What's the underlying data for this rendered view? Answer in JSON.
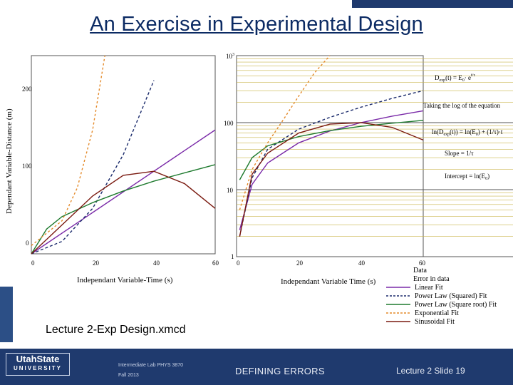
{
  "slide": {
    "title": "An Exercise in Experimental Design",
    "caption": "Lecture 2-Exp Design.xmcd"
  },
  "left_plot": {
    "ylabel": "Dependant Variable-Distance (m)",
    "xlabel": "Independant Variable-Time (s)",
    "xticks": [
      "0",
      "20",
      "40",
      "60"
    ],
    "yticks": [
      "0",
      "100",
      "200"
    ]
  },
  "right_plot": {
    "xlabel": "Independant Variable Time (s)",
    "xticks": [
      "0",
      "20",
      "40",
      "60"
    ],
    "yticks": [
      "1",
      "10",
      "100"
    ],
    "ytop_label": "10",
    "ytop_exp": "3"
  },
  "equations": {
    "eq1_lhs": "D",
    "eq1_sub": "exp",
    "eq1_mid": "(t) = E",
    "eq1_sub2": "0",
    "eq1_rest": "· e",
    "eq1_exp": "t/τ",
    "log_text": "Taking the log of the equation",
    "eq2": "ln(D",
    "eq2_sub": "exp",
    "eq2_rest": "(t)) = ln(E",
    "eq2_sub2": "0",
    "eq2_end": ") + (1/τ)·t",
    "slope": "Slope = 1/τ",
    "intercept": "Intercept = ln(E",
    "intercept_sub": "0",
    "intercept_end": ")"
  },
  "legend": {
    "items": [
      {
        "label": "Data",
        "color": "#000000",
        "style": "dots"
      },
      {
        "label": "Error in data",
        "color": "#000000",
        "style": "none"
      },
      {
        "label": "Linear Fit",
        "color": "#7a2aa8",
        "style": "solid"
      },
      {
        "label": "Power Law (Squared) Fit",
        "color": "#1a2a6b",
        "style": "dash"
      },
      {
        "label": "Power Law (Square root) Fit",
        "color": "#1e7a2e",
        "style": "solid"
      },
      {
        "label": "Exponential Fit",
        "color": "#e48a2a",
        "style": "dash"
      },
      {
        "label": "Sinusoidal Fit",
        "color": "#7a1a10",
        "style": "solid"
      }
    ]
  },
  "footer": {
    "logo_top": "UtahState",
    "logo_bottom": "UNIVERSITY",
    "course": "Intermediate Lab PHYS 3870",
    "term": "Fall 2013",
    "center": "DEFINING ERRORS",
    "slide_number": "Lecture  2   Slide  19"
  },
  "colors": {
    "linear": "#7a2aa8",
    "power_squared": "#1a2a6b",
    "power_sqrt": "#1e7a2e",
    "exponential": "#e48a2a",
    "sinusoidal": "#7a1a10",
    "gridline": "#c9b44a",
    "footer_bg": "#1f3a6e"
  },
  "chart_data": [
    {
      "type": "line",
      "title": "",
      "xlabel": "Independant Variable-Time (s)",
      "ylabel": "Dependant Variable-Distance (m)",
      "xlim": [
        0,
        60
      ],
      "ylim": [
        0,
        240
      ],
      "series": [
        {
          "name": "Linear Fit",
          "x": [
            0,
            60
          ],
          "y": [
            0,
            150
          ]
        },
        {
          "name": "Power Law (Squared) Fit",
          "x": [
            0,
            10,
            20,
            30,
            40
          ],
          "y": [
            0,
            15,
            55,
            120,
            210
          ]
        },
        {
          "name": "Power Law (Square root) Fit",
          "x": [
            0,
            5,
            10,
            20,
            30,
            40,
            50,
            60
          ],
          "y": [
            0,
            30,
            45,
            62,
            76,
            88,
            98,
            108
          ]
        },
        {
          "name": "Exponential Fit",
          "x": [
            0,
            10,
            15,
            20,
            24
          ],
          "y": [
            10,
            40,
            80,
            150,
            240
          ]
        },
        {
          "name": "Sinusoidal Fit",
          "x": [
            0,
            10,
            20,
            30,
            40,
            50,
            60
          ],
          "y": [
            0,
            35,
            70,
            95,
            100,
            85,
            55
          ]
        }
      ]
    },
    {
      "type": "line",
      "title": "",
      "xlabel": "Independant Variable Time (s)",
      "ylabel": "",
      "xlim": [
        0,
        60
      ],
      "ylim": [
        1,
        1000
      ],
      "yscale": "log",
      "series": [
        {
          "name": "Linear Fit",
          "x": [
            1,
            5,
            10,
            20,
            30,
            40,
            50,
            60
          ],
          "y": [
            2.5,
            12,
            25,
            50,
            75,
            100,
            125,
            150
          ]
        },
        {
          "name": "Power Law (Squared) Fit",
          "x": [
            1,
            5,
            10,
            20,
            30,
            40,
            50,
            60
          ],
          "y": [
            2,
            15,
            40,
            80,
            120,
            170,
            230,
            300
          ]
        },
        {
          "name": "Power Law (Square root) Fit",
          "x": [
            1,
            5,
            10,
            20,
            30,
            40,
            50,
            60
          ],
          "y": [
            14,
            30,
            45,
            62,
            76,
            88,
            98,
            108
          ]
        },
        {
          "name": "Exponential Fit",
          "x": [
            1,
            5,
            10,
            15,
            20,
            25,
            30
          ],
          "y": [
            5,
            20,
            50,
            110,
            250,
            550,
            1000
          ]
        },
        {
          "name": "Sinusoidal Fit",
          "x": [
            1,
            5,
            10,
            20,
            30,
            40,
            50,
            60
          ],
          "y": [
            2,
            17,
            35,
            70,
            95,
            100,
            85,
            55
          ]
        }
      ]
    }
  ]
}
